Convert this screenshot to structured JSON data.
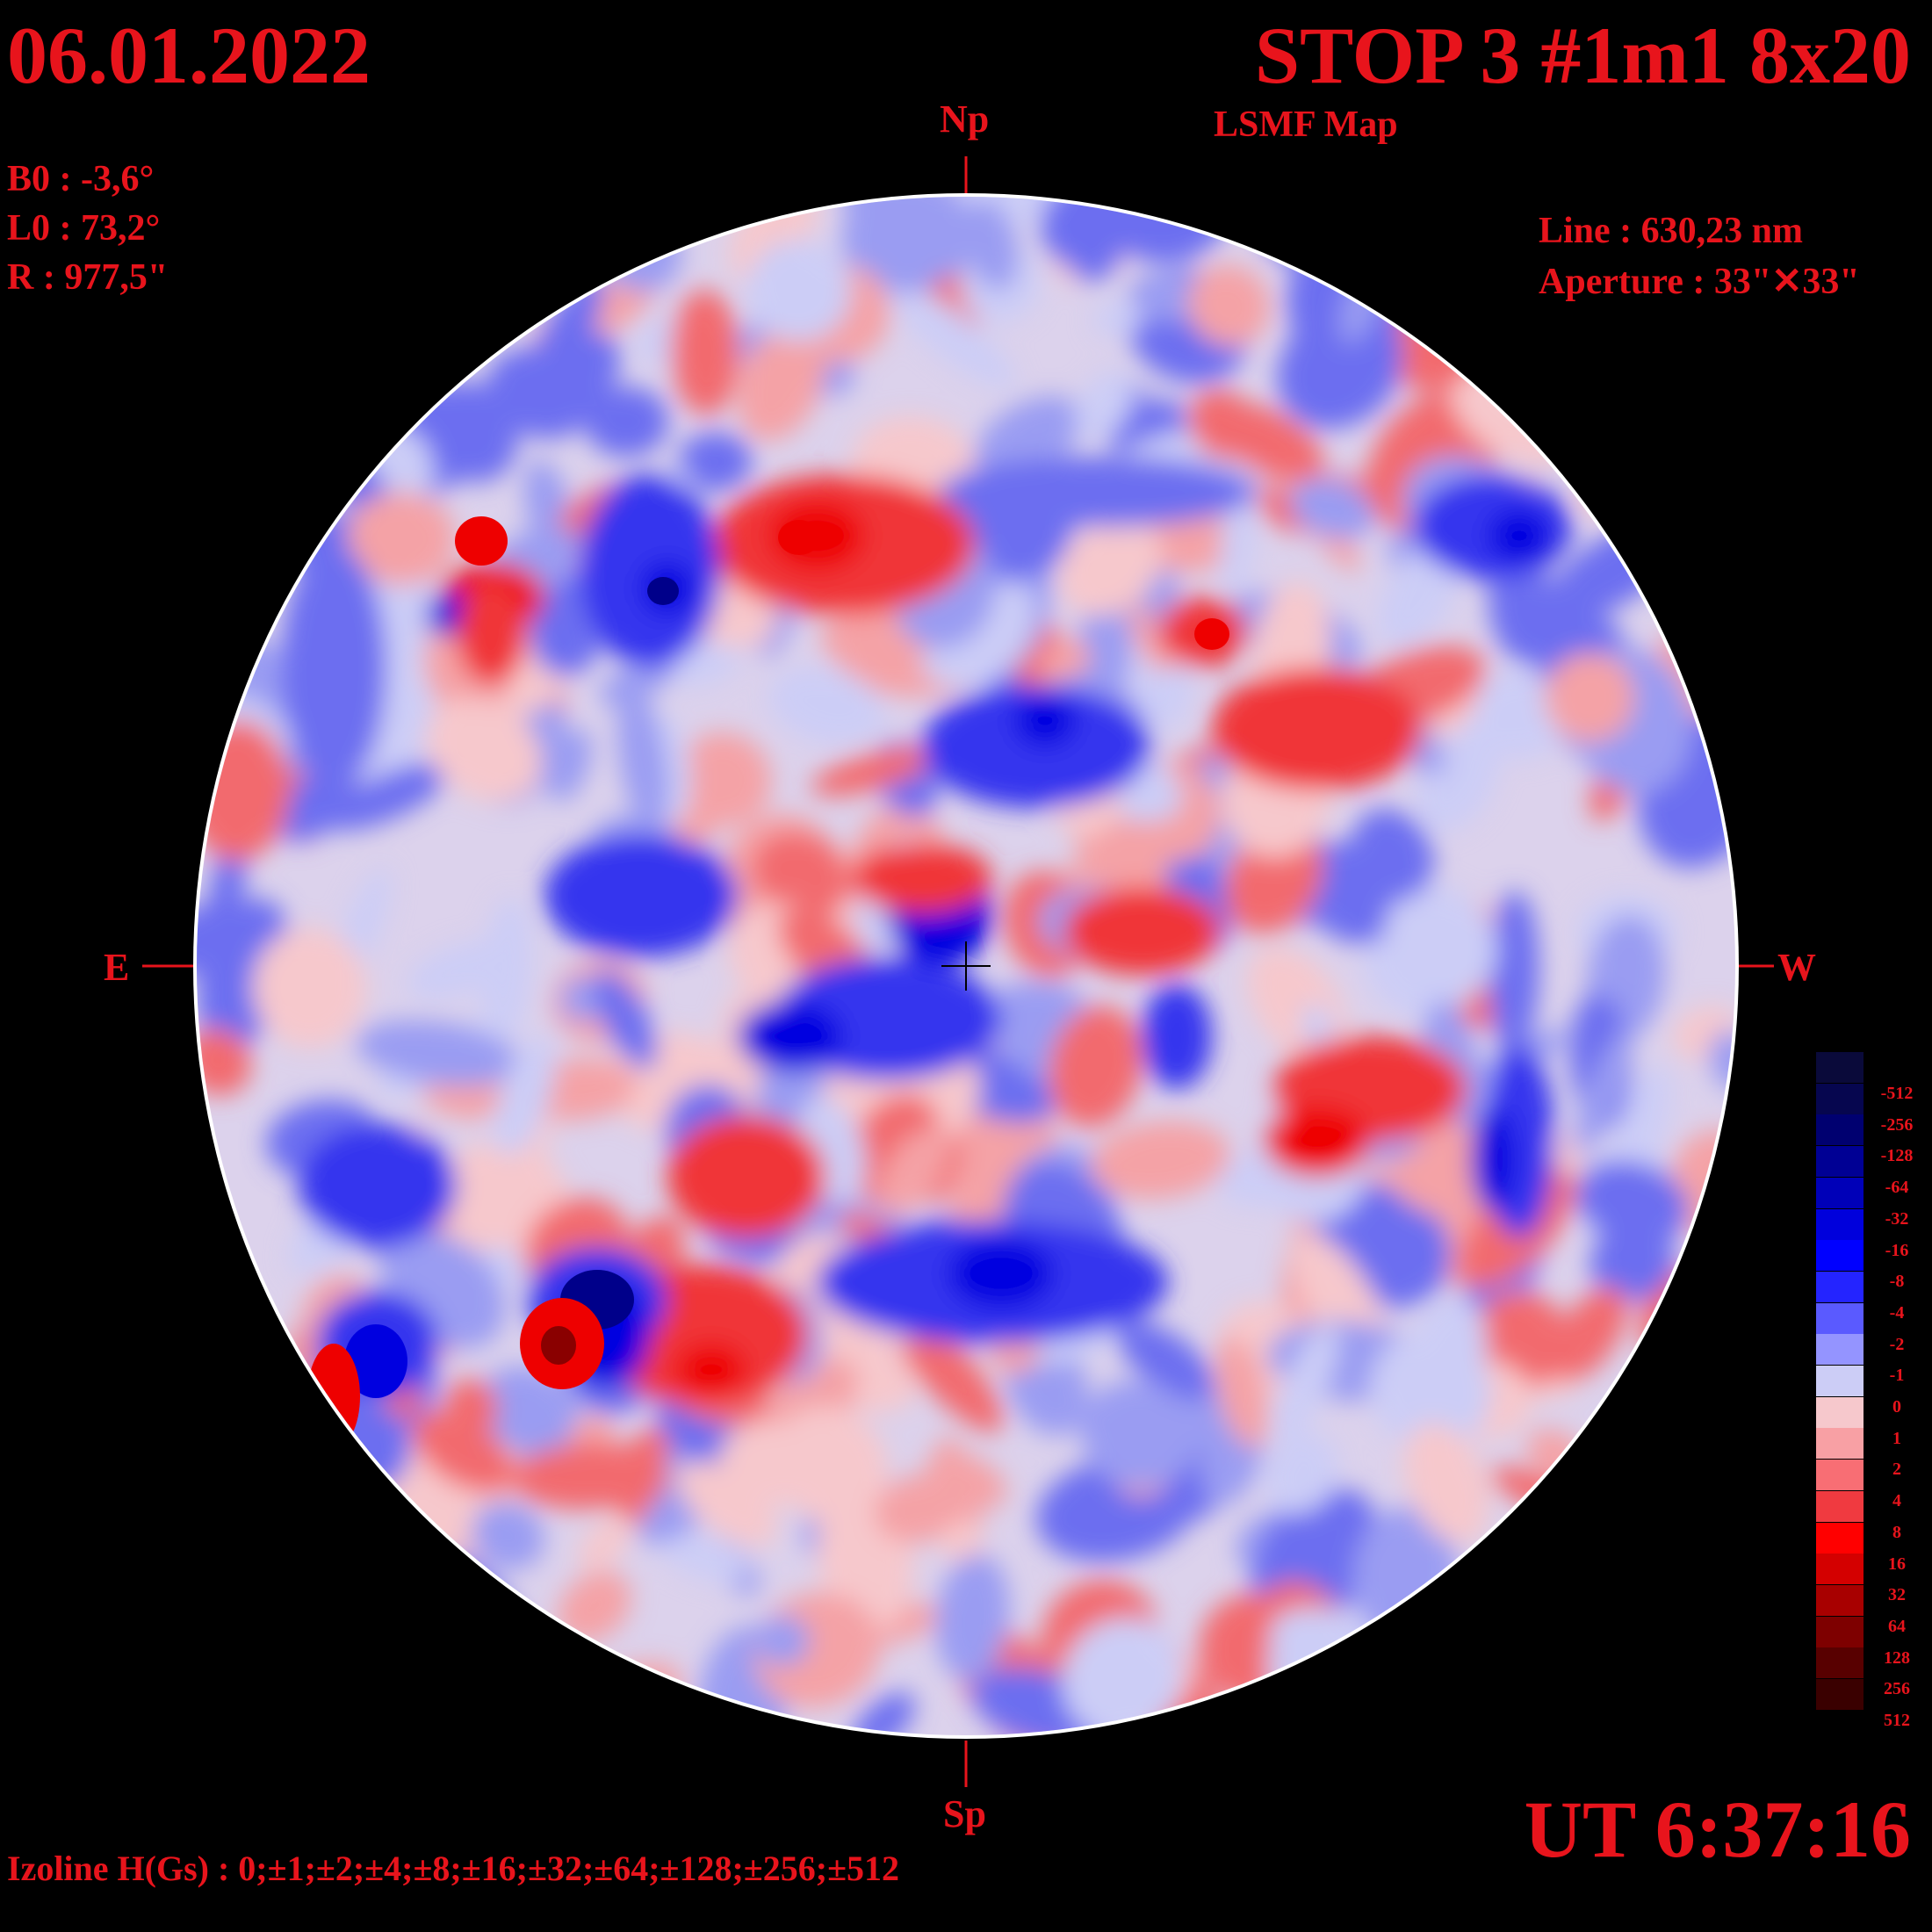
{
  "header": {
    "date": "06.01.2022",
    "title": "STOP 3 #1m1 8x20",
    "subtitle": "LSMF  Map"
  },
  "params": {
    "b0": "B0 : -3,6°",
    "l0": "L0 : 73,2°",
    "r": "R  : 977,5\""
  },
  "instrument": {
    "line": "Line :  630,23 nm",
    "aperture": "Aperture : 33\"✕33\""
  },
  "directions": {
    "north": "Np",
    "south": "Sp",
    "east": "E",
    "west": "W"
  },
  "footer": {
    "ut": "UT 6:37:16",
    "izoline": "Izoline H(Gs) : 0;±1;±2;±4;±8;±16;±32;±64;±128;±256;±512"
  },
  "legend": {
    "levels": [
      "-512",
      "-256",
      "-128",
      "-64",
      "-32",
      "-16",
      "-8",
      "-4",
      "-2",
      "-1",
      "0",
      "1",
      "2",
      "4",
      "8",
      "16",
      "32",
      "64",
      "128",
      "256",
      "512"
    ],
    "colors": [
      "#0a0a3a",
      "#06064f",
      "#000070",
      "#000094",
      "#0000b8",
      "#0000dc",
      "#0000ff",
      "#2424ff",
      "#5a5aff",
      "#9494ff",
      "#cccdf6",
      "#f6c8cc",
      "#f8a0a4",
      "#f86e74",
      "#f03a40",
      "#ff0000",
      "#d40000",
      "#a80000",
      "#7e0000",
      "#580000",
      "#3a0000"
    ]
  },
  "map": {
    "colors": {
      "neg_weak": "#cccdf6",
      "neg_1": "#9a9cf2",
      "neg_2": "#6c6ef0",
      "neg_3": "#3434ee",
      "neg_4": "#0000e0",
      "neg_5": "#00008a",
      "pos_weak": "#f6c8cc",
      "pos_1": "#f4a2a6",
      "pos_2": "#f26a6e",
      "pos_3": "#f03438",
      "pos_4": "#ee0000",
      "pos_5": "#8a0000"
    }
  }
}
